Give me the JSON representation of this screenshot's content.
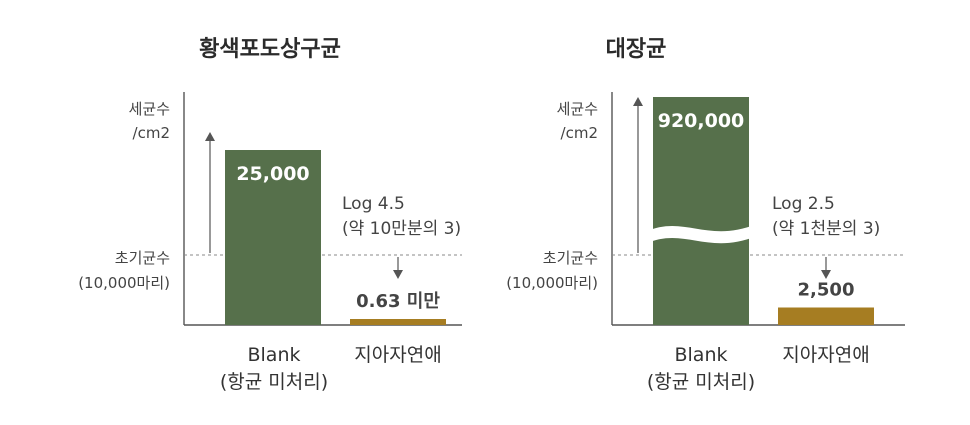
{
  "chart_data": [
    {
      "type": "bar",
      "title": "황색포도상구균",
      "ylabel_lines": [
        "세균수",
        "/cm2"
      ],
      "reference_label_lines": [
        "초기균수",
        "(10,000마리)"
      ],
      "reference_value": 10000,
      "categories": [
        {
          "lines": [
            "Blank",
            "(항균 미처리)"
          ]
        },
        {
          "lines": [
            "지아자연애"
          ]
        }
      ],
      "values": [
        25000,
        0.63
      ],
      "value_labels": [
        "25,000",
        "0.63 미만"
      ],
      "annotation_lines": [
        "Log 4.5",
        "(약 10만분의 3)"
      ],
      "axis_break": false,
      "ylim": [
        0,
        32000
      ],
      "colors": [
        "#56704b",
        "#a67d22"
      ]
    },
    {
      "type": "bar",
      "title": "대장균",
      "ylabel_lines": [
        "세균수",
        "/cm2"
      ],
      "reference_label_lines": [
        "초기균수",
        "(10,000마리)"
      ],
      "reference_value": 10000,
      "categories": [
        {
          "lines": [
            "Blank",
            "(항균 미처리)"
          ]
        },
        {
          "lines": [
            "지아자연애"
          ]
        }
      ],
      "values": [
        920000,
        2500
      ],
      "value_labels": [
        "920,000",
        "2,500"
      ],
      "annotation_lines": [
        "Log 2.5",
        "(약 1천분의 3)"
      ],
      "axis_break": true,
      "ylim": [
        0,
        920000
      ],
      "colors": [
        "#56704b",
        "#a67d22"
      ]
    }
  ]
}
